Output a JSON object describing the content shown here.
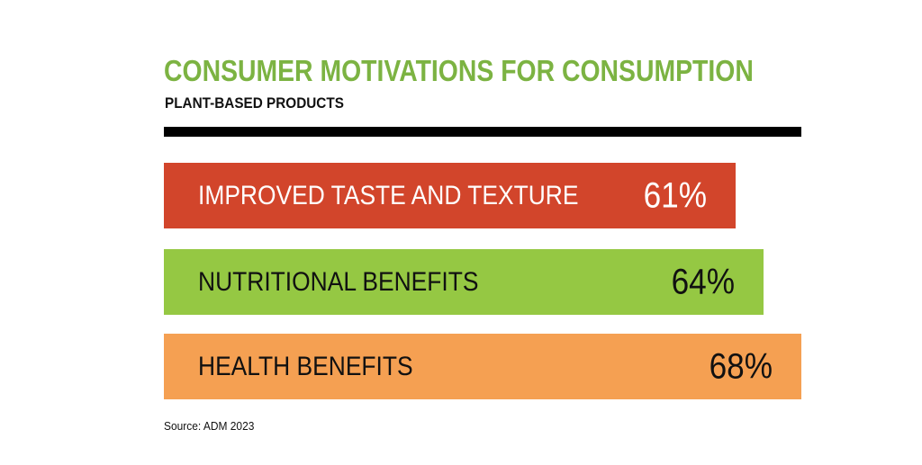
{
  "colors": {
    "title": "#7cb342",
    "text_light": "#ffffff",
    "text_dark": "#111111"
  },
  "chart_data": {
    "type": "bar",
    "orientation": "horizontal",
    "title": "CONSUMER MOTIVATIONS FOR CONSUMPTION",
    "subtitle": "PLANT-BASED PRODUCTS",
    "categories": [
      "IMPROVED TASTE AND TEXTURE",
      "NUTRITIONAL BENEFITS",
      "HEALTH BENEFITS"
    ],
    "values": [
      61,
      64,
      68
    ],
    "value_labels": [
      "61%",
      "64%",
      "68%"
    ],
    "bar_colors": [
      "#d2452b",
      "#95c843",
      "#f5a052"
    ],
    "label_colors": [
      "#ffffff",
      "#111111",
      "#111111"
    ],
    "unit": "%",
    "source": "Source: ADM 2023",
    "grid": false,
    "legend": "none"
  }
}
